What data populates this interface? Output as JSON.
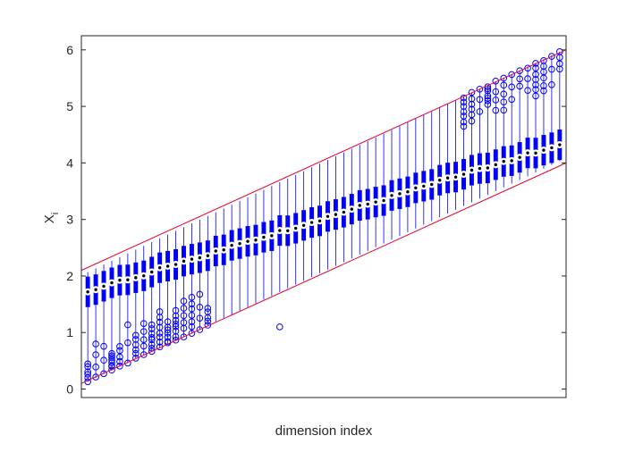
{
  "chart_data": {
    "type": "boxplot",
    "xlabel": "dimension index",
    "ylabel": "X",
    "ylabel_subscript": "i",
    "ylim": [
      -0.15,
      6.25
    ],
    "yticks": [
      0,
      1,
      2,
      3,
      4,
      5,
      6
    ],
    "x_tick_labels": "none",
    "grid": false,
    "n_dimensions": 60,
    "colors": {
      "box": "#0000ff",
      "whisker": "#0000ff",
      "median_dot": "#000000",
      "median_ring": "#ffffff",
      "outlier": "#0000ff",
      "envelope": "#e8002c",
      "axes": "#262626"
    },
    "envelope_lower": {
      "start": 0.1,
      "end": 4.0
    },
    "envelope_upper": {
      "start": 2.1,
      "end": 6.0
    },
    "median": {
      "start": 1.72,
      "end": 4.33
    },
    "q1_offset": -0.27,
    "q3_offset": 0.27,
    "low_outlier_dimensions": 16,
    "high_outlier_from_dimension": 47
  }
}
